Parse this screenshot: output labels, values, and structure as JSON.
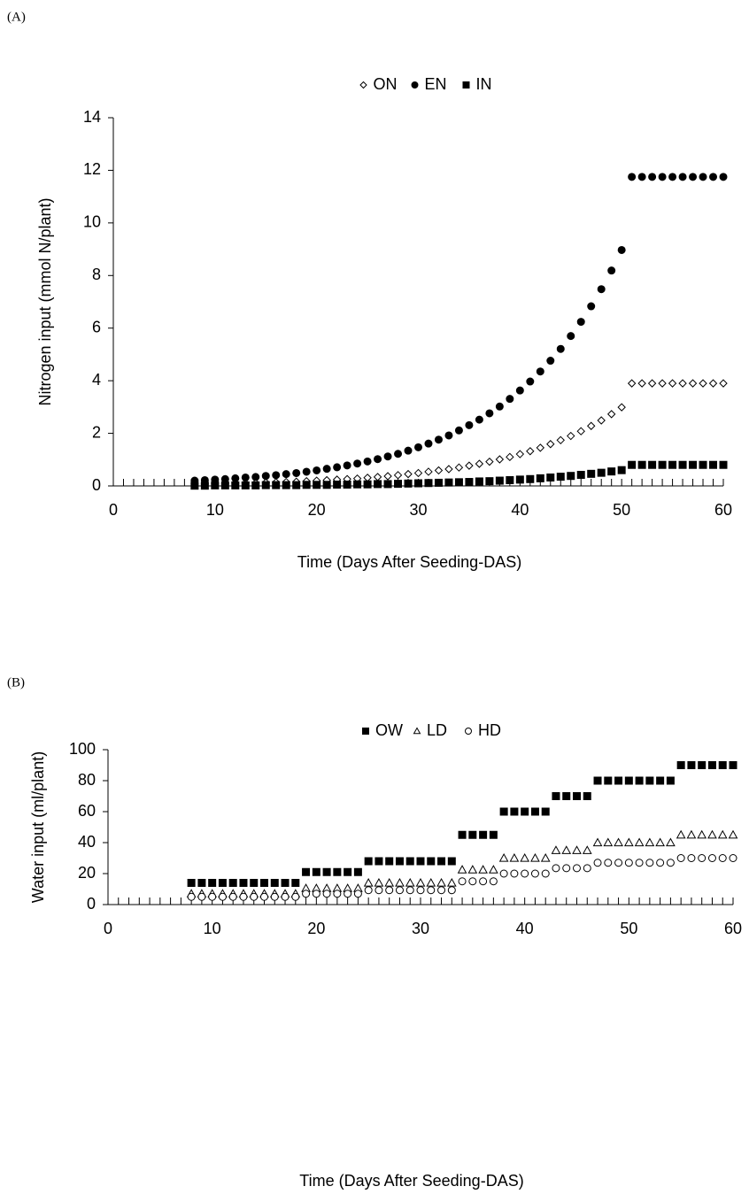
{
  "chart_data": [
    {
      "type": "scatter",
      "panel_label": "(A)",
      "x_label": "Time (Days After Seeding-DAS)",
      "y_label": "Nitrogen input (mmol N/plant)",
      "xlim": [
        0,
        60
      ],
      "xticks": [
        0,
        10,
        20,
        30,
        40,
        50,
        60
      ],
      "ylim": [
        0,
        14
      ],
      "yticks": [
        0,
        2,
        4,
        6,
        8,
        10,
        12,
        14
      ],
      "x": [
        8,
        9,
        10,
        11,
        12,
        13,
        14,
        15,
        16,
        17,
        18,
        19,
        20,
        21,
        22,
        23,
        24,
        25,
        26,
        27,
        28,
        29,
        30,
        31,
        32,
        33,
        34,
        35,
        36,
        37,
        38,
        39,
        40,
        41,
        42,
        43,
        44,
        45,
        46,
        47,
        48,
        49,
        50,
        51,
        52,
        53,
        54,
        55,
        56,
        57,
        58,
        59,
        60
      ],
      "series": [
        {
          "name": "ON",
          "color": "#000000",
          "marker": "diamond",
          "filled": false,
          "values": [
            0.07,
            0.07,
            0.08,
            0.09,
            0.1,
            0.11,
            0.11,
            0.13,
            0.14,
            0.15,
            0.16,
            0.18,
            0.2,
            0.22,
            0.24,
            0.26,
            0.28,
            0.31,
            0.34,
            0.37,
            0.41,
            0.45,
            0.49,
            0.54,
            0.59,
            0.64,
            0.7,
            0.77,
            0.84,
            0.92,
            1.01,
            1.1,
            1.21,
            1.32,
            1.45,
            1.59,
            1.74,
            1.9,
            2.08,
            2.28,
            2.49,
            2.73,
            2.99,
            3.9,
            3.9,
            3.9,
            3.9,
            3.9,
            3.9,
            3.9,
            3.9,
            3.9,
            3.9
          ]
        },
        {
          "name": "EN",
          "color": "#000000",
          "marker": "circle",
          "filled": true,
          "values": [
            0.2,
            0.22,
            0.24,
            0.26,
            0.29,
            0.32,
            0.34,
            0.38,
            0.41,
            0.45,
            0.49,
            0.54,
            0.59,
            0.65,
            0.71,
            0.78,
            0.85,
            0.93,
            1.02,
            1.12,
            1.22,
            1.34,
            1.47,
            1.61,
            1.76,
            1.92,
            2.11,
            2.31,
            2.52,
            2.76,
            3.02,
            3.31,
            3.63,
            3.97,
            4.35,
            4.76,
            5.21,
            5.7,
            6.24,
            6.83,
            7.48,
            8.19,
            8.97,
            11.75,
            11.75,
            11.75,
            11.75,
            11.75,
            11.75,
            11.75,
            11.75,
            11.75,
            11.75
          ]
        },
        {
          "name": "IN",
          "color": "#000000",
          "marker": "square",
          "filled": true,
          "values": [
            0.01,
            0.01,
            0.02,
            0.02,
            0.02,
            0.02,
            0.02,
            0.03,
            0.03,
            0.03,
            0.03,
            0.04,
            0.04,
            0.04,
            0.05,
            0.05,
            0.06,
            0.06,
            0.07,
            0.07,
            0.08,
            0.09,
            0.1,
            0.11,
            0.12,
            0.13,
            0.14,
            0.15,
            0.17,
            0.18,
            0.2,
            0.22,
            0.24,
            0.26,
            0.29,
            0.32,
            0.35,
            0.38,
            0.42,
            0.46,
            0.5,
            0.55,
            0.6,
            0.8,
            0.8,
            0.8,
            0.8,
            0.8,
            0.8,
            0.8,
            0.8,
            0.8,
            0.8
          ]
        }
      ]
    },
    {
      "type": "scatter",
      "panel_label": "(B)",
      "x_label": "Time (Days After Seeding-DAS)",
      "y_label": "Water input (ml/plant)",
      "xlim": [
        0,
        60
      ],
      "xticks": [
        0,
        10,
        20,
        30,
        40,
        50,
        60
      ],
      "ylim": [
        0,
        100
      ],
      "yticks": [
        0,
        20,
        40,
        60,
        80,
        100
      ],
      "x": [
        8,
        9,
        10,
        11,
        12,
        13,
        14,
        15,
        16,
        17,
        18,
        19,
        20,
        21,
        22,
        23,
        24,
        25,
        26,
        27,
        28,
        29,
        30,
        31,
        32,
        33,
        34,
        35,
        36,
        37,
        38,
        39,
        40,
        41,
        42,
        43,
        44,
        45,
        46,
        47,
        48,
        49,
        50,
        51,
        52,
        53,
        54,
        55,
        56,
        57,
        58,
        59,
        60
      ],
      "series": [
        {
          "name": "OW",
          "color": "#000000",
          "marker": "square",
          "filled": true,
          "values": [
            14,
            14,
            14,
            14,
            14,
            14,
            14,
            14,
            14,
            14,
            14,
            21,
            21,
            21,
            21,
            21,
            21,
            28,
            28,
            28,
            28,
            28,
            28,
            28,
            28,
            28,
            45,
            45,
            45,
            45,
            60,
            60,
            60,
            60,
            60,
            70,
            70,
            70,
            70,
            80,
            80,
            80,
            80,
            80,
            80,
            80,
            80,
            90,
            90,
            90,
            90,
            90,
            90
          ]
        },
        {
          "name": "LD",
          "color": "#000000",
          "marker": "triangle",
          "filled": false,
          "values": [
            7,
            7,
            7,
            7,
            7,
            7,
            7,
            7,
            7,
            7,
            7,
            10.5,
            10.5,
            10.5,
            10.5,
            10.5,
            10.5,
            14,
            14,
            14,
            14,
            14,
            14,
            14,
            14,
            14,
            22.5,
            22.5,
            22.5,
            22.5,
            30,
            30,
            30,
            30,
            30,
            35,
            35,
            35,
            35,
            40,
            40,
            40,
            40,
            40,
            40,
            40,
            40,
            45,
            45,
            45,
            45,
            45,
            45
          ]
        },
        {
          "name": "HD",
          "color": "#000000",
          "marker": "circle",
          "filled": false,
          "values": [
            5,
            5,
            5,
            5,
            5,
            5,
            5,
            5,
            5,
            5,
            5,
            7,
            7,
            7,
            7,
            7,
            7,
            9.3,
            9.3,
            9.3,
            9.3,
            9.3,
            9.3,
            9.3,
            9.3,
            9.3,
            15,
            15,
            15,
            15,
            20,
            20,
            20,
            20,
            20,
            23.5,
            23.5,
            23.5,
            23.5,
            27,
            27,
            27,
            27,
            27,
            27,
            27,
            27,
            30,
            30,
            30,
            30,
            30,
            30
          ]
        }
      ]
    }
  ]
}
